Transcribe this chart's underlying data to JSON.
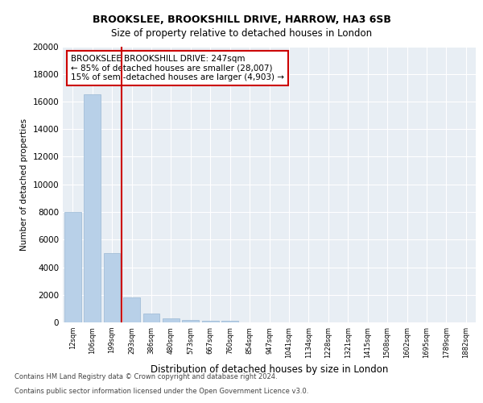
{
  "title1": "BROOKSLEE, BROOKSHILL DRIVE, HARROW, HA3 6SB",
  "title2": "Size of property relative to detached houses in London",
  "xlabel": "Distribution of detached houses by size in London",
  "ylabel": "Number of detached properties",
  "categories": [
    "12sqm",
    "106sqm",
    "199sqm",
    "293sqm",
    "386sqm",
    "480sqm",
    "573sqm",
    "667sqm",
    "760sqm",
    "854sqm",
    "947sqm",
    "1041sqm",
    "1134sqm",
    "1228sqm",
    "1321sqm",
    "1415sqm",
    "1508sqm",
    "1602sqm",
    "1695sqm",
    "1789sqm",
    "1882sqm"
  ],
  "values": [
    8000,
    16500,
    5000,
    1800,
    650,
    280,
    190,
    140,
    90,
    0,
    0,
    0,
    0,
    0,
    0,
    0,
    0,
    0,
    0,
    0,
    0
  ],
  "bar_color": "#b8d0e8",
  "bar_edge_color": "#9ab8d4",
  "vline_x": 2.5,
  "vline_color": "#cc0000",
  "annotation_title": "BROOKSLEE BROOKSHILL DRIVE: 247sqm",
  "annotation_line1": "← 85% of detached houses are smaller (28,007)",
  "annotation_line2": "15% of semi-detached houses are larger (4,903) →",
  "ylim": [
    0,
    20000
  ],
  "yticks": [
    0,
    2000,
    4000,
    6000,
    8000,
    10000,
    12000,
    14000,
    16000,
    18000,
    20000
  ],
  "plot_bg_color": "#e8eef4",
  "footer1": "Contains HM Land Registry data © Crown copyright and database right 2024.",
  "footer2": "Contains public sector information licensed under the Open Government Licence v3.0."
}
